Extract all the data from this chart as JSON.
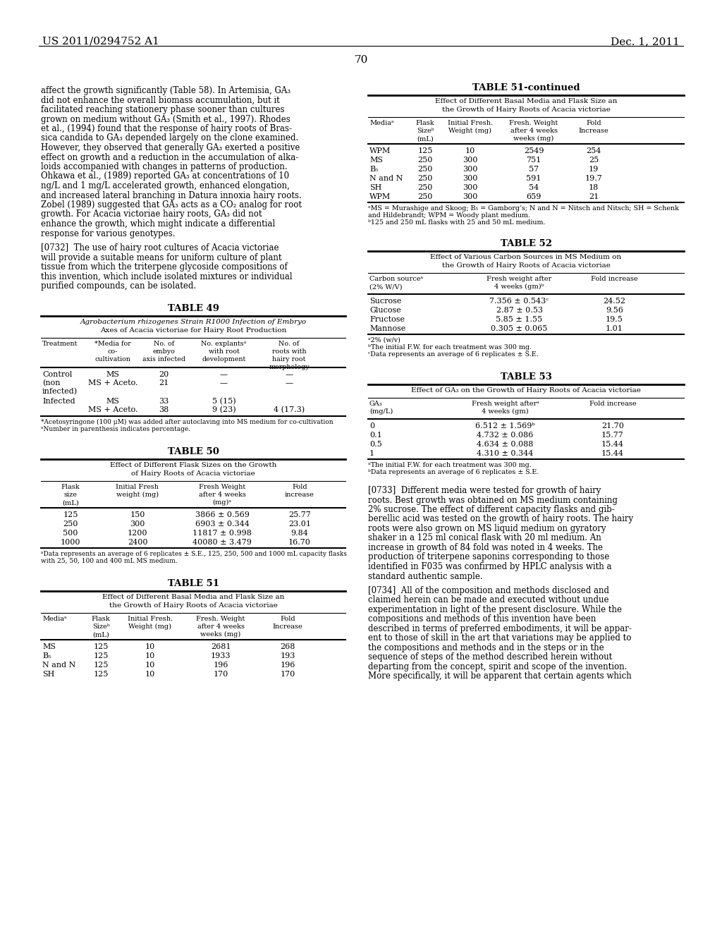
{
  "bg_color": "#ffffff",
  "header_left": "US 2011/0294752 A1",
  "header_right": "Dec. 1, 2011",
  "page_number": "70",
  "left_lines": [
    "affect the growth significantly (Table 58). In Artemisia, GA₃",
    "did not enhance the overall biomass accumulation, but it",
    "facilitated reaching stationery phase sooner than cultures",
    "grown on medium without GA₃ (Smith et al., 1997). Rhodes",
    "et al., (1994) found that the response of hairy roots of Bras-",
    "sica candida to GA₃ depended largely on the clone examined.",
    "However, they observed that generally GA₃ exerted a positive",
    "effect on growth and a reduction in the accumulation of alka-",
    "loids accompanied with changes in patterns of production.",
    "Ohkawa et al., (1989) reported GA₃ at concentrations of 10",
    "ng/L and 1 mg/L accelerated growth, enhanced elongation,",
    "and increased lateral branching in Datura innoxia hairy roots.",
    "Zobel (1989) suggested that GA₃ acts as a CO₂ analog for root",
    "growth. For Acacia victoriae hairy roots, GA₃ did not",
    "enhance the growth, which might indicate a differential",
    "response for various genotypes.",
    "",
    "[0732]  The use of hairy root cultures of Acacia victoriae",
    "will provide a suitable means for uniform culture of plant",
    "tissue from which the triterpene glycoside compositions of",
    "this invention, which include isolated mixtures or individual",
    "purified compounds, can be isolated."
  ],
  "right_text_lines": [
    "[0733]  Different media were tested for growth of hairy",
    "roots. Best growth was obtained on MS medium containing",
    "2% sucrose. The effect of different capacity flasks and gib-",
    "berellic acid was tested on the growth of hairy roots. The hairy",
    "roots were also grown on MS liquid medium on gyratory",
    "shaker in a 125 ml conical flask with 20 ml medium. An",
    "increase in growth of 84 fold was noted in 4 weeks. The",
    "production of triterpene saponins corresponding to those",
    "identified in F035 was confirmed by HPLC analysis with a",
    "standard authentic sample.",
    "",
    "[0734]  All of the composition and methods disclosed and",
    "claimed herein can be made and executed without undue",
    "experimentation in light of the present disclosure. While the",
    "compositions and methods of this invention have been",
    "described in terms of preferred embodiments, it will be appar-",
    "ent to those of skill in the art that variations may be applied to",
    "the compositions and methods and in the steps or in the",
    "sequence of steps of the method described herein without",
    "departing from the concept, spirit and scope of the invention.",
    "More specifically, it will be apparent that certain agents which"
  ]
}
